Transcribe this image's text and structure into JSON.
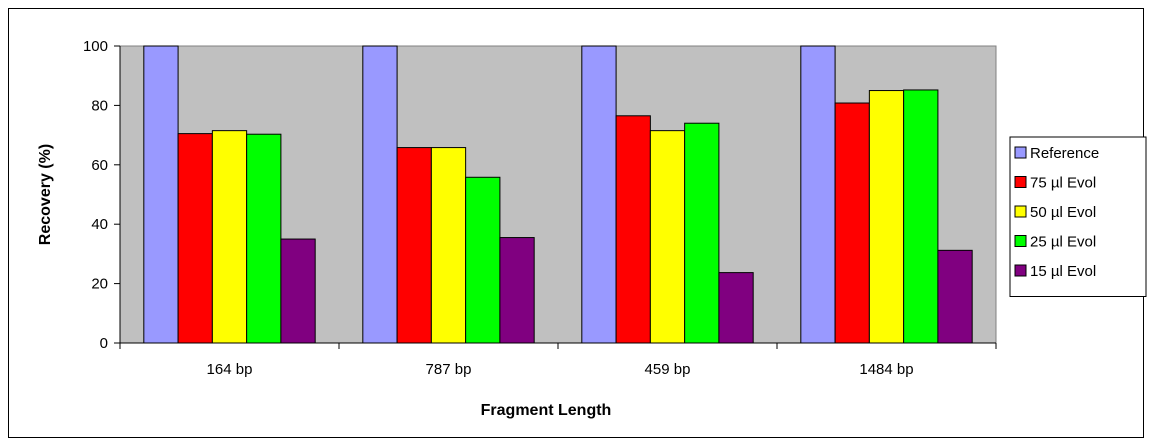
{
  "chart_data": {
    "type": "bar",
    "title": "",
    "xlabel": "Fragment Length",
    "ylabel": "Recovery (%)",
    "categories": [
      "164 bp",
      "787 bp",
      "459 bp",
      "1484 bp"
    ],
    "ylim": [
      0,
      100
    ],
    "yticks": [
      0,
      20,
      40,
      60,
      80,
      100
    ],
    "grid": false,
    "legend_position": "right",
    "plot_background": "#c0c0c0",
    "series": [
      {
        "name": "Reference",
        "color": "#9999ff",
        "values": [
          100,
          100,
          100,
          100
        ]
      },
      {
        "name": "75 µl Evol",
        "color": "#ff0000",
        "values": [
          70.5,
          65.8,
          76.5,
          80.8
        ]
      },
      {
        "name": "50 µl Evol",
        "color": "#ffff00",
        "values": [
          71.5,
          65.8,
          71.5,
          85
        ]
      },
      {
        "name": "25 µl Evol",
        "color": "#00ff00",
        "values": [
          70.3,
          55.8,
          74,
          85.2
        ]
      },
      {
        "name": "15 µl Evol",
        "color": "#800080",
        "values": [
          35,
          35.5,
          23.7,
          31.2
        ]
      }
    ]
  }
}
